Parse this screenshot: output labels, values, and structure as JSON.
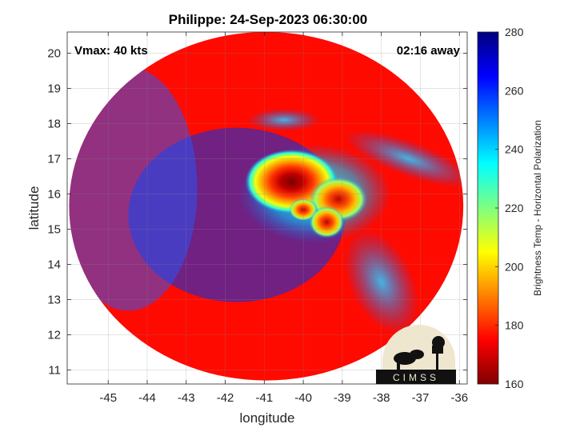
{
  "chart_data": {
    "type": "heatmap",
    "title": "Philippe: 24-Sep-2023 06:30:00",
    "annotations": {
      "vmax": "Vmax: 40 kts",
      "time_offset": "02:16 away"
    },
    "xlabel": "longitude",
    "ylabel": "latitude",
    "xlim": [
      -46.05,
      -35.8
    ],
    "ylim": [
      10.6,
      20.6
    ],
    "xticks": [
      -45,
      -44,
      -43,
      -42,
      -41,
      -40,
      -39,
      -38,
      -37,
      -36
    ],
    "yticks": [
      11,
      12,
      13,
      14,
      15,
      16,
      17,
      18,
      19,
      20
    ],
    "grid": true,
    "colorbar": {
      "label": "Brightness Temp - Horizontal Polarization",
      "range": [
        160,
        280
      ],
      "ticks": [
        160,
        180,
        200,
        220,
        240,
        260,
        280
      ],
      "colormap": "jet"
    },
    "swath": {
      "center": [
        -40.95,
        15.65
      ],
      "radius_lon": 5.05,
      "radius_lat": 4.95
    },
    "background_value": 262,
    "features": [
      {
        "lon": -40.3,
        "lat": 16.35,
        "min_value": 168
      },
      {
        "lon": -39.1,
        "lat": 15.85,
        "min_value": 180
      },
      {
        "lon": -40.0,
        "lat": 15.55,
        "min_value": 195
      },
      {
        "lon": -39.4,
        "lat": 15.2,
        "min_value": 205
      }
    ]
  },
  "logo": {
    "text": "CIMSS"
  },
  "colors": {
    "accent_cold": "#00007f",
    "accent_warm": "#7f0000"
  }
}
